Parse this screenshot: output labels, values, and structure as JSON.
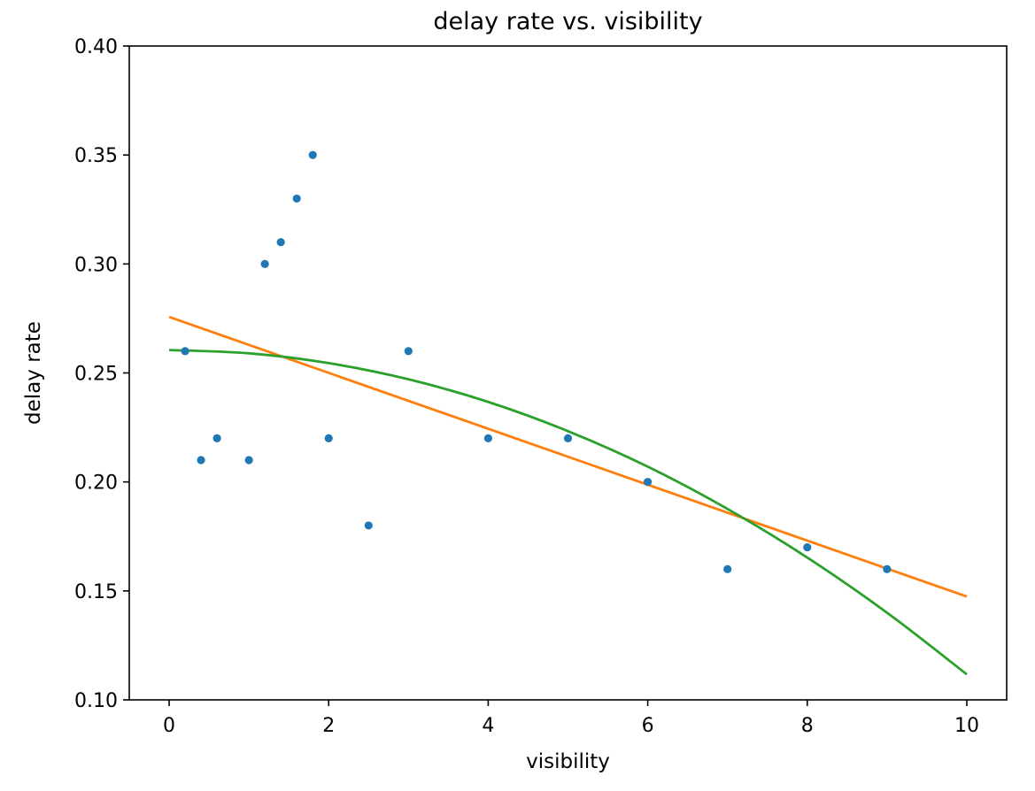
{
  "chart_data": {
    "type": "scatter",
    "title": "delay rate vs. visibility",
    "xlabel": "visibility",
    "ylabel": "delay rate",
    "xlim": [
      -0.5,
      10.5
    ],
    "ylim": [
      0.1,
      0.4
    ],
    "xticks": [
      0,
      2,
      4,
      6,
      8,
      10
    ],
    "yticks": [
      0.1,
      0.15,
      0.2,
      0.25,
      0.3,
      0.35,
      0.4
    ],
    "ytick_labels": [
      "0.10",
      "0.15",
      "0.20",
      "0.25",
      "0.30",
      "0.35",
      "0.40"
    ],
    "grid": false,
    "points": {
      "color": "#1f77b4",
      "x": [
        0.2,
        0.4,
        0.6,
        1.0,
        1.2,
        1.4,
        1.6,
        1.8,
        2.0,
        2.5,
        3.0,
        4.0,
        5.0,
        6.0,
        7.0,
        8.0,
        9.0
      ],
      "y": [
        0.26,
        0.21,
        0.22,
        0.21,
        0.3,
        0.31,
        0.33,
        0.35,
        0.22,
        0.18,
        0.26,
        0.22,
        0.22,
        0.2,
        0.16,
        0.17,
        0.16
      ]
    },
    "fits": [
      {
        "kind": "linear",
        "color": "#ff7f0e",
        "x": [
          0,
          10
        ],
        "y": [
          0.2757,
          0.1474
        ]
      },
      {
        "kind": "quadratic",
        "color": "#2ca02c",
        "x": [
          0,
          1,
          2,
          3,
          4,
          5,
          6,
          7,
          8,
          9,
          10
        ],
        "y": [
          0.2605,
          0.259,
          0.2545,
          0.2471,
          0.2367,
          0.2233,
          0.207,
          0.1876,
          0.1653,
          0.14,
          0.1117
        ]
      }
    ]
  }
}
